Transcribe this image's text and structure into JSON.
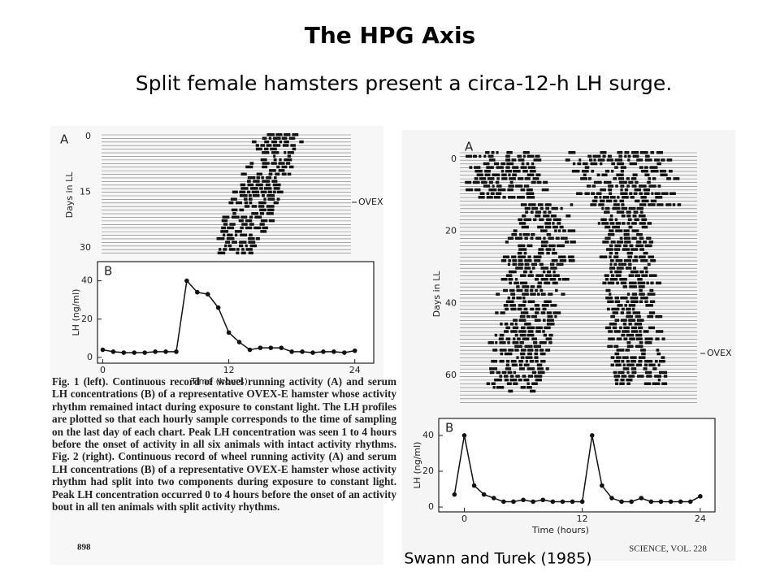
{
  "title": "The HPG Axis",
  "subtitle": "Split female hamsters present a circa-12-h LH surge.",
  "actogram_left": {
    "label": "A",
    "day_ticks": [
      0,
      15,
      30
    ],
    "y_label": "Days in LL",
    "marker": "OVEX"
  },
  "actogram_right": {
    "label": "A",
    "day_ticks": [
      0,
      20,
      40,
      60
    ],
    "y_label": "Days in LL",
    "marker": "OVEX"
  },
  "chart_data": [
    {
      "type": "line",
      "label": "B",
      "x_label": "Time (hours)",
      "y_label": "LH (ng/ml)",
      "x": [
        0,
        1,
        2,
        3,
        4,
        5,
        6,
        7,
        8,
        9,
        10,
        11,
        12,
        13,
        14,
        15,
        16,
        17,
        18,
        19,
        20,
        21,
        22,
        23,
        24
      ],
      "values": [
        4,
        3,
        2.5,
        2.5,
        2.5,
        3,
        3,
        3,
        40,
        34,
        33,
        26,
        13,
        8,
        4,
        5,
        5,
        5,
        3,
        3,
        2.5,
        3,
        3,
        2.5,
        3.5
      ],
      "color": "#111111",
      "xlim": [
        -0.5,
        25.8
      ],
      "ylim": [
        -3,
        50
      ],
      "xticks": [
        0,
        12,
        24
      ],
      "yticks": [
        0,
        20,
        40
      ]
    },
    {
      "type": "line",
      "label": "B",
      "x_label": "Time (hours)",
      "y_label": "LH (ng/ml)",
      "x": [
        -1,
        0,
        1,
        2,
        3,
        4,
        5,
        6,
        7,
        8,
        9,
        10,
        11,
        12,
        13,
        14,
        15,
        16,
        17,
        18,
        19,
        20,
        21,
        22,
        23,
        24
      ],
      "values": [
        7,
        40,
        12,
        7,
        5,
        3,
        3,
        4,
        3,
        4,
        3,
        3,
        3,
        3,
        40,
        12,
        5,
        3,
        3,
        5,
        3,
        3,
        3,
        3,
        3,
        6
      ],
      "color": "#111111",
      "xlim": [
        -2.6,
        25.5
      ],
      "ylim": [
        -2.7,
        49.5
      ],
      "xticks": [
        0,
        12,
        24
      ],
      "yticks": [
        0,
        20,
        40
      ]
    }
  ],
  "caption": "Fig. 1 (left). Continuous record of wheel running activity (A) and serum LH concentrations (B) of a representative OVEX-E hamster whose activity rhythm remained intact during exposure to constant light. The LH profiles are plotted so that each hourly sample corresponds to the time of sampling on the last day of each chart. Peak LH concentration was seen 1 to 4 hours before the onset of activity in all six animals with intact activity rhythms. Fig. 2 (right). Continuous record of wheel running activity (A) and serum LH concentrations (B) of a representative OVEX-E hamster whose activity rhythm had split into two components during exposure to constant light. Peak LH concentration occurred 0 to 4 hours before the onset of an activity bout in all ten animals with split activity rhythms.",
  "page_number": "898",
  "journal": "SCIENCE, VOL. 228",
  "citation": "Swann and Turek (1985)"
}
